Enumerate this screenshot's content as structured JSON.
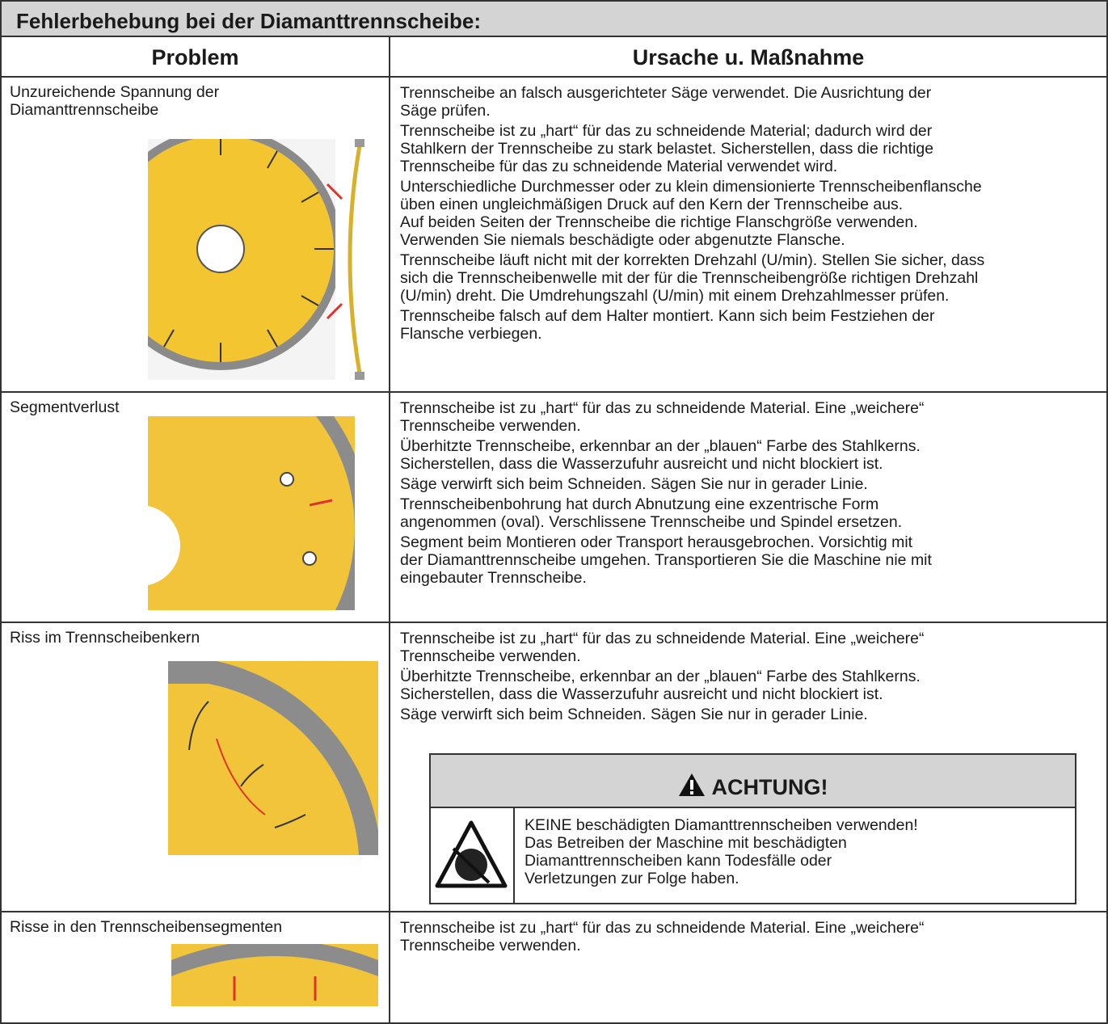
{
  "title": "Fehlerbehebung bei der Diamanttrennscheibe:",
  "table": {
    "headers": [
      "Problem",
      "Ursache u. Maßnahme"
    ],
    "rows": [
      {
        "problem": [
          "Unzureichende Spannung der",
          "Diamanttrennscheibe"
        ],
        "causes": [
          [
            "Trennscheibe an falsch ausgerichteter Säge verwendet. Die Ausrichtung der",
            "Säge prüfen."
          ],
          [
            "Trennscheibe ist zu „hart“ für das zu schneidende Material; dadurch wird der",
            "Stahlkern der Trennscheibe zu stark belastet. Sicherstellen, dass die richtige",
            "Trennscheibe für das zu schneidende Material verwendet wird."
          ],
          [
            "Unterschiedliche Durchmesser oder zu klein dimensionierte Trennscheibenflansche",
            "üben einen ungleichmäßigen Druck auf den Kern der Trennscheibe aus.",
            "Auf beiden Seiten der Trennscheibe die richtige Flanschgröße verwenden.",
            "Verwenden Sie niemals beschädigte oder abgenutzte Flansche."
          ],
          [
            "Trennscheibe läuft nicht mit der korrekten Drehzahl (U/min). Stellen Sie sicher, dass",
            "sich die Trennscheibenwelle mit der für die Trennscheibengröße richtigen Drehzahl",
            "(U/min) dreht. Die Umdrehungszahl (U/min) mit einem Drehzahlmesser prüfen."
          ],
          [
            "Trennscheibe falsch auf dem Halter montiert. Kann sich beim Festziehen der",
            "Flansche verbiegen."
          ]
        ]
      },
      {
        "problem": [
          "Segmentverlust"
        ],
        "causes": [
          [
            "Trennscheibe ist zu „hart“ für das zu schneidende Material. Eine „weichere“",
            "Trennscheibe verwenden."
          ],
          [
            "Überhitzte Trennscheibe, erkennbar an der „blauen“ Farbe des Stahlkerns.",
            "Sicherstellen, dass die Wasserzufuhr ausreicht und nicht blockiert ist."
          ],
          [
            "Säge verwirft sich beim Schneiden. Sägen Sie nur in gerader Linie."
          ],
          [
            "Trennscheibenbohrung hat durch Abnutzung eine exzentrische Form",
            "angenommen (oval). Verschlissene Trennscheibe und Spindel ersetzen."
          ],
          [
            "Segment beim Montieren oder Transport herausgebrochen. Vorsichtig mit",
            "der Diamanttrennscheibe umgehen. Transportieren Sie die Maschine nie mit",
            "eingebauter Trennscheibe."
          ]
        ]
      },
      {
        "problem": [
          "Riss im Trennscheibenkern"
        ],
        "causes": [
          [
            "Trennscheibe ist zu „hart“ für das zu schneidende Material. Eine „weichere“",
            "Trennscheibe verwenden."
          ],
          [
            "Überhitzte Trennscheibe, erkennbar an der „blauen“ Farbe des Stahlkerns.",
            "Sicherstellen, dass die Wasserzufuhr ausreicht und nicht blockiert ist."
          ],
          [
            "Säge verwirft sich beim Schneiden. Sägen Sie nur in gerader Linie."
          ]
        ],
        "warning": {
          "heading": "ACHTUNG!",
          "text": [
            "KEINE beschädigten Diamanttrennscheiben verwenden!",
            "Das Betreiben der Maschine mit beschädigten",
            "Diamanttrennscheiben kann Todesfälle oder",
            "Verletzungen zur Folge haben."
          ]
        }
      },
      {
        "problem": [
          "Risse in den Trennscheibensegmenten"
        ],
        "causes": [
          [
            "Trennscheibe ist zu „hart“ für das zu schneidende Material. Eine „weichere“",
            "Trennscheibe verwenden."
          ]
        ]
      }
    ]
  }
}
